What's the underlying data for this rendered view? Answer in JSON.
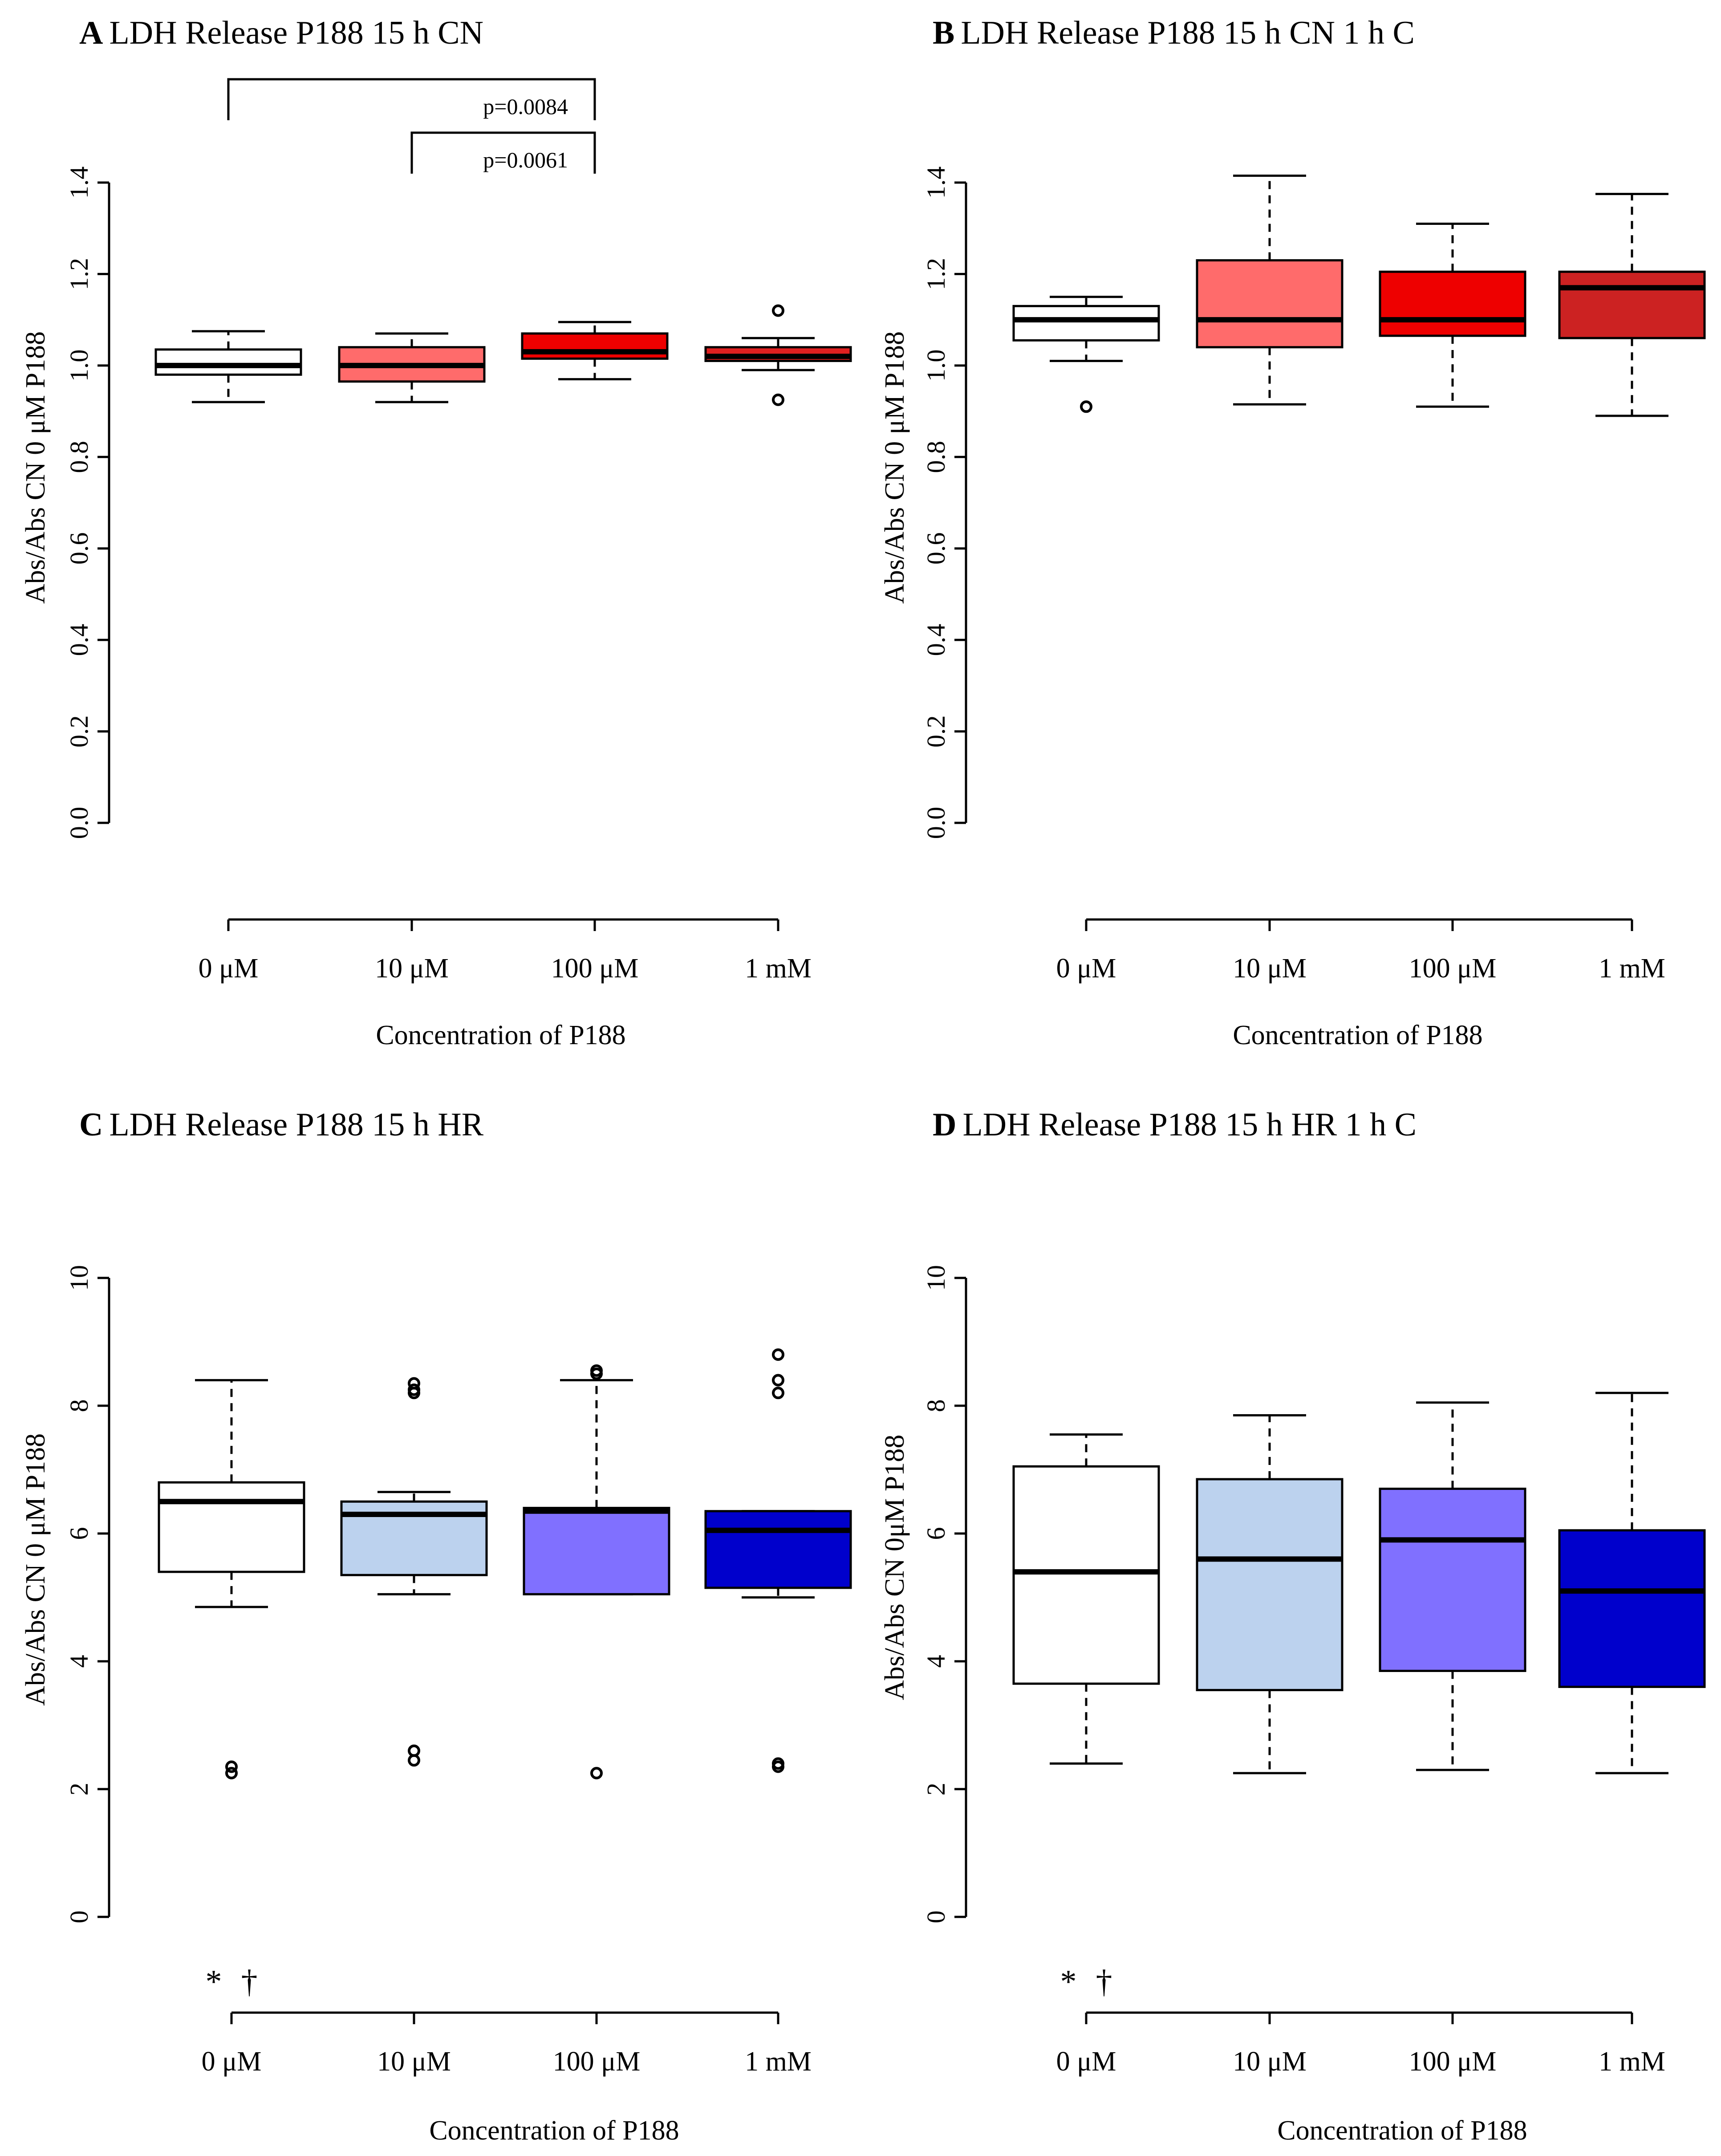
{
  "figure": {
    "colors": {
      "white_box": "#ffffff",
      "red_10": "#ff6b6b",
      "red_100": "#ee0000",
      "red_1m_A": "#e02020",
      "red_1m_B": "#cc2222",
      "blue_10": "#bcd2ee",
      "blue_100": "#8070ff",
      "blue_1m": "#0000cc"
    }
  },
  "chart_data": [
    {
      "id": "A",
      "type": "boxplot",
      "title_letter": "A",
      "title": "LDH Release P188 15 h CN",
      "ylabel": "Abs/Abs CN 0 μM P188",
      "xlabel": "Concentration of P188",
      "categories": [
        "0 μM",
        "10 μM",
        "100 μM",
        "1 mM"
      ],
      "ylim": [
        0,
        1.4
      ],
      "yticks": [
        "0.0",
        "0.2",
        "0.4",
        "0.6",
        "0.8",
        "1.0",
        "1.2",
        "1.4"
      ],
      "boxes": [
        {
          "min": 0.92,
          "q1": 0.98,
          "median": 1.0,
          "q3": 1.035,
          "max": 1.075,
          "outliers": [],
          "fill": "white_box"
        },
        {
          "min": 0.92,
          "q1": 0.965,
          "median": 1.0,
          "q3": 1.04,
          "max": 1.07,
          "outliers": [],
          "fill": "red_10"
        },
        {
          "min": 0.97,
          "q1": 1.015,
          "median": 1.03,
          "q3": 1.07,
          "max": 1.095,
          "outliers": [],
          "fill": "red_100"
        },
        {
          "min": 0.99,
          "q1": 1.01,
          "median": 1.02,
          "q3": 1.04,
          "max": 1.06,
          "outliers": [
            1.12,
            0.925
          ],
          "fill": "red_1m_A"
        }
      ],
      "brackets": [
        {
          "from": 0,
          "to": 2,
          "label": "p=0.0084",
          "level": 1
        },
        {
          "from": 1,
          "to": 2,
          "label": "p=0.0061",
          "level": 0
        }
      ],
      "symbols": []
    },
    {
      "id": "B",
      "type": "boxplot",
      "title_letter": "B",
      "title": "LDH Release P188 15 h CN 1 h C",
      "ylabel": "Abs/Abs CN 0 μM P188",
      "xlabel": "Concentration of P188",
      "categories": [
        "0 μM",
        "10 μM",
        "100 μM",
        "1 mM"
      ],
      "ylim": [
        0,
        1.4
      ],
      "yticks": [
        "0.0",
        "0.2",
        "0.4",
        "0.6",
        "0.8",
        "1.0",
        "1.2",
        "1.4"
      ],
      "boxes": [
        {
          "min": 1.01,
          "q1": 1.055,
          "median": 1.1,
          "q3": 1.13,
          "max": 1.15,
          "outliers": [
            0.91
          ],
          "fill": "white_box"
        },
        {
          "min": 0.915,
          "q1": 1.04,
          "median": 1.1,
          "q3": 1.23,
          "max": 1.415,
          "outliers": [],
          "fill": "red_10"
        },
        {
          "min": 0.91,
          "q1": 1.065,
          "median": 1.1,
          "q3": 1.205,
          "max": 1.31,
          "outliers": [],
          "fill": "red_100"
        },
        {
          "min": 0.89,
          "q1": 1.06,
          "median": 1.17,
          "q3": 1.205,
          "max": 1.375,
          "outliers": [],
          "fill": "red_1m_B"
        }
      ],
      "brackets": [],
      "symbols": []
    },
    {
      "id": "C",
      "type": "boxplot",
      "title_letter": "C",
      "title": "LDH Release P188 15 h HR",
      "ylabel": "Abs/Abs CN 0 μM P188",
      "xlabel": "Concentration of P188",
      "categories": [
        "0 μM",
        "10 μM",
        "100 μM",
        "1 mM"
      ],
      "ylim": [
        0,
        10
      ],
      "yticks": [
        "0",
        "2",
        "4",
        "6",
        "8",
        "10"
      ],
      "boxes": [
        {
          "min": 4.85,
          "q1": 5.4,
          "median": 6.5,
          "q3": 6.8,
          "max": 8.4,
          "outliers": [
            2.35,
            2.25
          ],
          "fill": "white_box"
        },
        {
          "min": 5.05,
          "q1": 5.35,
          "median": 6.3,
          "q3": 6.5,
          "max": 6.65,
          "outliers": [
            8.35,
            8.25,
            8.2,
            2.6,
            2.45
          ],
          "fill": "blue_10"
        },
        {
          "min": 5.05,
          "q1": 5.05,
          "median": 6.35,
          "q3": 6.4,
          "max": 8.4,
          "outliers": [
            8.55,
            8.5,
            2.25
          ],
          "fill": "blue_100"
        },
        {
          "min": 5.0,
          "q1": 5.15,
          "median": 6.05,
          "q3": 6.35,
          "max": 6.35,
          "outliers": [
            8.8,
            8.4,
            8.2,
            2.4,
            2.35
          ],
          "fill": "blue_1m"
        }
      ],
      "brackets": [],
      "symbols": [
        "*",
        "†"
      ]
    },
    {
      "id": "D",
      "type": "boxplot",
      "title_letter": "D",
      "title": "LDH Release P188 15 h HR 1 h C",
      "ylabel": "Abs/Abs CN 0μM P188",
      "xlabel": "Concentration of P188",
      "categories": [
        "0 μM",
        "10 μM",
        "100 μM",
        "1 mM"
      ],
      "ylim": [
        0,
        10
      ],
      "yticks": [
        "0",
        "2",
        "4",
        "6",
        "8",
        "10"
      ],
      "boxes": [
        {
          "min": 2.4,
          "q1": 3.65,
          "median": 5.4,
          "q3": 7.05,
          "max": 7.55,
          "outliers": [],
          "fill": "white_box"
        },
        {
          "min": 2.25,
          "q1": 3.55,
          "median": 5.6,
          "q3": 6.85,
          "max": 7.85,
          "outliers": [],
          "fill": "blue_10"
        },
        {
          "min": 2.3,
          "q1": 3.85,
          "median": 5.9,
          "q3": 6.7,
          "max": 8.05,
          "outliers": [],
          "fill": "blue_100"
        },
        {
          "min": 2.25,
          "q1": 3.6,
          "median": 5.1,
          "q3": 6.05,
          "max": 8.2,
          "outliers": [],
          "fill": "blue_1m"
        }
      ],
      "brackets": [],
      "symbols": [
        "*",
        "†"
      ]
    }
  ]
}
